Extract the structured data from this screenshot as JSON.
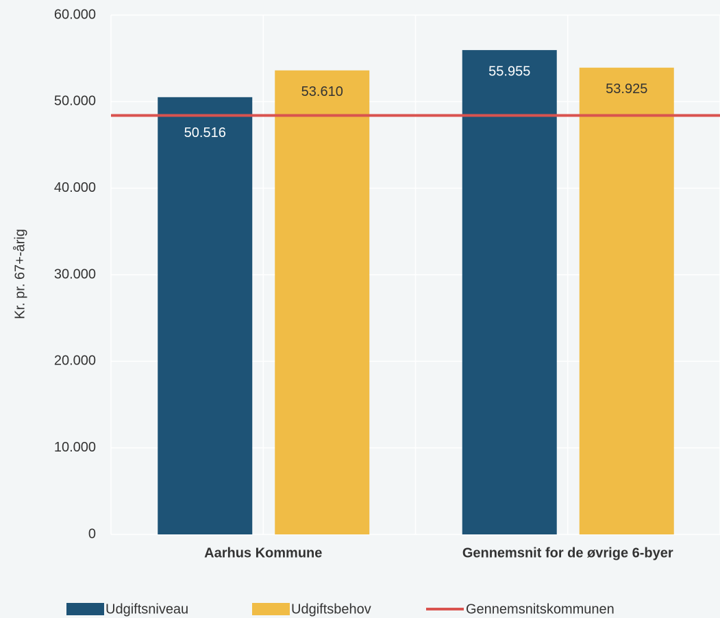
{
  "chart_data": {
    "type": "bar",
    "y_label": "Kr. pr. 67+-årig",
    "categories": [
      "Aarhus Kommune",
      "Gennemsnit for de øvrige 6-byer"
    ],
    "series": [
      {
        "name": "Udgiftsniveau",
        "color": "#1e5376",
        "values": [
          50516,
          55955
        ],
        "value_labels": [
          "50.516",
          "55.955"
        ]
      },
      {
        "name": "Udgiftsbehov",
        "color": "#f0bc46",
        "values": [
          53610,
          53925
        ],
        "value_labels": [
          "53.610",
          "53.925"
        ]
      }
    ],
    "reference_line": {
      "name": "Gennemsnitskommunen",
      "color": "#d9534f",
      "value": 48400
    },
    "ylim": [
      0,
      60000
    ],
    "yticks": [
      0,
      {
        "value": 10000,
        "label": "10.000"
      },
      {
        "value": 20000,
        "label": "20.000"
      },
      {
        "value": 30000,
        "label": "30.000"
      },
      {
        "value": 40000,
        "label": "40.000"
      },
      {
        "value": 50000,
        "label": "50.000"
      },
      {
        "value": 60000,
        "label": "60.000"
      }
    ],
    "grid": true
  }
}
